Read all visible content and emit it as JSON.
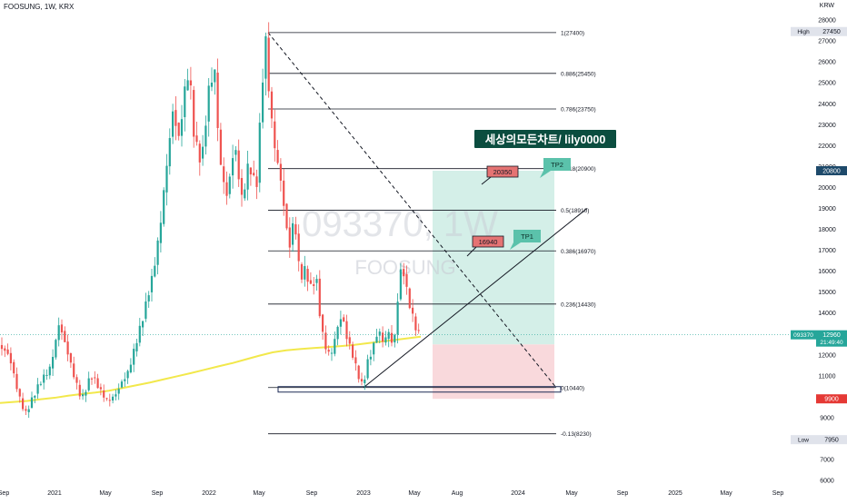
{
  "header": {
    "symbol_line": "FOOSUNG, 1W, KRX",
    "currency": "KRW"
  },
  "watermark": {
    "ticker": "093370, 1W",
    "name": "FOOSUNG"
  },
  "title_box": "세상의모든차트/ lily0000",
  "colors": {
    "up": "#26a69a",
    "down": "#ef5350",
    "ma": "#f2e84b",
    "profit_zone": "#d4efe8",
    "loss_zone": "#f9d9dc",
    "title_bg": "#0b4d3f",
    "tp_label": "#5bc2ab",
    "price_label": "#e57373"
  },
  "chart_data": {
    "type": "candlestick",
    "x_ticks": [
      "Sep",
      "2021",
      "May",
      "Sep",
      "2022",
      "May",
      "Sep",
      "2023",
      "May",
      "Aug",
      "2024",
      "May",
      "Sep",
      "2025",
      "May",
      "Sep"
    ],
    "y_ticks": [
      6000,
      7000,
      8000,
      9000,
      10000,
      11000,
      12000,
      13000,
      14000,
      15000,
      16000,
      17000,
      18000,
      19000,
      20000,
      21000,
      22000,
      23000,
      24000,
      25000,
      26000,
      27000,
      28000
    ],
    "ylim": [
      5700,
      28350
    ],
    "fib_levels": [
      {
        "label": "1(27400)",
        "price": 27400
      },
      {
        "label": "0.886(25450)",
        "price": 25450
      },
      {
        "label": "0.786(23750)",
        "price": 23750
      },
      {
        "label": "0.618(20900)",
        "price": 20900
      },
      {
        "label": "0.5(18910)",
        "price": 18910
      },
      {
        "label": "0.386(16970)",
        "price": 16970
      },
      {
        "label": "0.236(14430)",
        "price": 14430
      },
      {
        "label": "0(10440)",
        "price": 10440
      },
      {
        "label": "-0.13(8230)",
        "price": 8230
      }
    ],
    "price_tags": [
      {
        "text": "20350",
        "kind": "target"
      },
      {
        "text": "16940",
        "kind": "target"
      }
    ],
    "tp_labels": [
      "TP2",
      "TP1"
    ],
    "axis_labels": [
      {
        "tag": "High",
        "value": "27450",
        "price": 27450
      },
      {
        "tag": "",
        "value": "20800",
        "price": 20800
      },
      {
        "tag": "093370",
        "value": "12960",
        "sub": "21:49:40",
        "price": 12960
      },
      {
        "tag": "",
        "value": "9900",
        "price": 9900
      },
      {
        "tag": "Low",
        "value": "7950",
        "price": 7950
      }
    ],
    "long_position": {
      "entry": 12500,
      "target": 20800,
      "stop": 9900
    },
    "ma_line": [
      [
        0,
        9700
      ],
      [
        15,
        9750
      ],
      [
        30,
        9800
      ],
      [
        45,
        9880
      ],
      [
        60,
        9950
      ],
      [
        75,
        10050
      ],
      [
        90,
        10130
      ],
      [
        105,
        10200
      ],
      [
        120,
        10290
      ],
      [
        135,
        10420
      ],
      [
        150,
        10550
      ],
      [
        165,
        10680
      ],
      [
        180,
        10830
      ],
      [
        195,
        10980
      ],
      [
        210,
        11130
      ],
      [
        225,
        11290
      ],
      [
        240,
        11450
      ],
      [
        255,
        11600
      ],
      [
        270,
        11780
      ],
      [
        285,
        11960
      ],
      [
        300,
        12120
      ],
      [
        315,
        12220
      ],
      [
        330,
        12280
      ],
      [
        345,
        12330
      ],
      [
        360,
        12370
      ],
      [
        375,
        12420
      ],
      [
        390,
        12480
      ],
      [
        405,
        12560
      ],
      [
        420,
        12640
      ],
      [
        435,
        12720
      ],
      [
        450,
        12800
      ],
      [
        463,
        12870
      ]
    ],
    "close_path": [
      [
        0,
        12500
      ],
      [
        10,
        11800
      ],
      [
        20,
        10200
      ],
      [
        28,
        9300
      ],
      [
        40,
        10200
      ],
      [
        55,
        11500
      ],
      [
        65,
        13500
      ],
      [
        72,
        12300
      ],
      [
        80,
        11200
      ],
      [
        90,
        10000
      ],
      [
        100,
        10900
      ],
      [
        110,
        10300
      ],
      [
        118,
        9950
      ],
      [
        128,
        10100
      ],
      [
        140,
        11000
      ],
      [
        150,
        12800
      ],
      [
        160,
        14200
      ],
      [
        168,
        15600
      ],
      [
        175,
        17800
      ],
      [
        182,
        20800
      ],
      [
        190,
        23500
      ],
      [
        197,
        22000
      ],
      [
        203,
        24500
      ],
      [
        208,
        26000
      ],
      [
        214,
        22500
      ],
      [
        222,
        21000
      ],
      [
        230,
        24500
      ],
      [
        236,
        25800
      ],
      [
        242,
        21500
      ],
      [
        250,
        19500
      ],
      [
        258,
        21800
      ],
      [
        266,
        19500
      ],
      [
        274,
        21500
      ],
      [
        282,
        19800
      ],
      [
        288,
        24200
      ],
      [
        292,
        27000
      ],
      [
        297,
        24000
      ],
      [
        303,
        22000
      ],
      [
        308,
        20800
      ],
      [
        313,
        18800
      ],
      [
        318,
        16800
      ],
      [
        324,
        18500
      ],
      [
        330,
        15800
      ],
      [
        336,
        16300
      ],
      [
        342,
        15200
      ],
      [
        348,
        15500
      ],
      [
        353,
        13300
      ],
      [
        358,
        12400
      ],
      [
        364,
        12100
      ],
      [
        370,
        13200
      ],
      [
        376,
        13800
      ],
      [
        382,
        12600
      ],
      [
        388,
        12000
      ],
      [
        394,
        11200
      ],
      [
        399,
        10600
      ],
      [
        405,
        11700
      ],
      [
        410,
        12100
      ],
      [
        416,
        13100
      ],
      [
        422,
        12700
      ],
      [
        428,
        13300
      ],
      [
        433,
        12300
      ],
      [
        438,
        14700
      ],
      [
        442,
        16200
      ],
      [
        447,
        15100
      ],
      [
        451,
        14400
      ],
      [
        455,
        13800
      ],
      [
        460,
        13200
      ],
      [
        463,
        12960
      ]
    ]
  }
}
